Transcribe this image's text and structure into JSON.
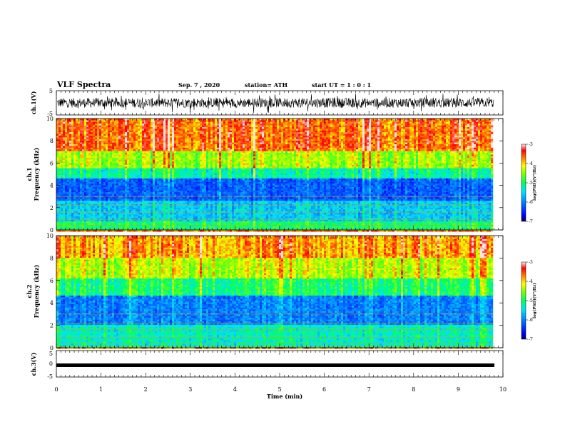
{
  "header": {
    "title": "VLF Spectra",
    "date": "Sep. 7 , 2020",
    "station": "station= ATH",
    "start": "start  UT =   1 : 0  : 1"
  },
  "colors": {
    "spectrum_scale": [
      "#000080",
      "#0000ff",
      "#0060ff",
      "#00c8ff",
      "#00ff80",
      "#40ff00",
      "#ffff00",
      "#ff8000",
      "#ff0000",
      "#ffe0e0"
    ]
  },
  "chart_data": [
    {
      "type": "line",
      "panel": "ch1-waveform",
      "ylabel": "ch.1(V)",
      "ylim": [
        -5,
        5
      ],
      "yticks": [
        "5",
        "-5"
      ],
      "x_range_min": [
        0,
        9.8
      ],
      "description_values": "noisy waveform oscillating mostly between -3 and +3 V"
    },
    {
      "type": "heatmap",
      "panel": "ch1-spectrogram",
      "ylabel": "ch.1\nFrequency (kHz)",
      "ylim": [
        0,
        10
      ],
      "yticks": [
        "0",
        "2",
        "4",
        "6",
        "8",
        "10"
      ],
      "colorbar": {
        "label": "log(PSD)(V²/Hz)",
        "range": [
          -7,
          -3
        ],
        "ticks": [
          "-3",
          "-4",
          "-5",
          "-6",
          "-7"
        ]
      },
      "bands": [
        {
          "freq_khz": [
            0,
            0.8
          ],
          "level": -5.0
        },
        {
          "freq_khz": [
            0.8,
            2.6
          ],
          "level": -5.6
        },
        {
          "freq_khz": [
            2.6,
            4.6
          ],
          "level": -6.2
        },
        {
          "freq_khz": [
            4.6,
            5.6
          ],
          "level": -5.2
        },
        {
          "freq_khz": [
            5.6,
            7.0
          ],
          "level": -4.4
        },
        {
          "freq_khz": [
            7.0,
            10
          ],
          "level": -3.6
        }
      ]
    },
    {
      "type": "heatmap",
      "panel": "ch2-spectrogram",
      "ylabel": "ch.2\nFrequency (kHz)",
      "ylim": [
        0,
        10
      ],
      "yticks": [
        "0",
        "2",
        "4",
        "6",
        "8",
        "10"
      ],
      "colorbar": {
        "label": "log(PSD)(V²/Hz)",
        "range": [
          -7,
          -3
        ],
        "ticks": [
          "-3",
          "-4",
          "-5",
          "-6",
          "-7"
        ]
      },
      "bands": [
        {
          "freq_khz": [
            0,
            2.0
          ],
          "level": -5.3
        },
        {
          "freq_khz": [
            2.0,
            4.6
          ],
          "level": -6.0
        },
        {
          "freq_khz": [
            4.6,
            6.2
          ],
          "level": -5.0
        },
        {
          "freq_khz": [
            6.2,
            8.0
          ],
          "level": -4.3
        },
        {
          "freq_khz": [
            8.0,
            10
          ],
          "level": -3.8
        }
      ]
    },
    {
      "type": "line",
      "panel": "ch3-waveform",
      "ylabel": "ch.3(V)",
      "ylim": [
        -5,
        5
      ],
      "yticks": [
        "5",
        "0",
        "-5"
      ],
      "x_range_min": [
        0,
        9.8
      ],
      "description_values": "flat thick trace near -1.5 V"
    }
  ],
  "x_axis": {
    "label": "Time (min)",
    "range": [
      0,
      10
    ],
    "ticks": [
      "0",
      "1",
      "2",
      "3",
      "4",
      "5",
      "6",
      "7",
      "8",
      "9",
      "10"
    ]
  }
}
